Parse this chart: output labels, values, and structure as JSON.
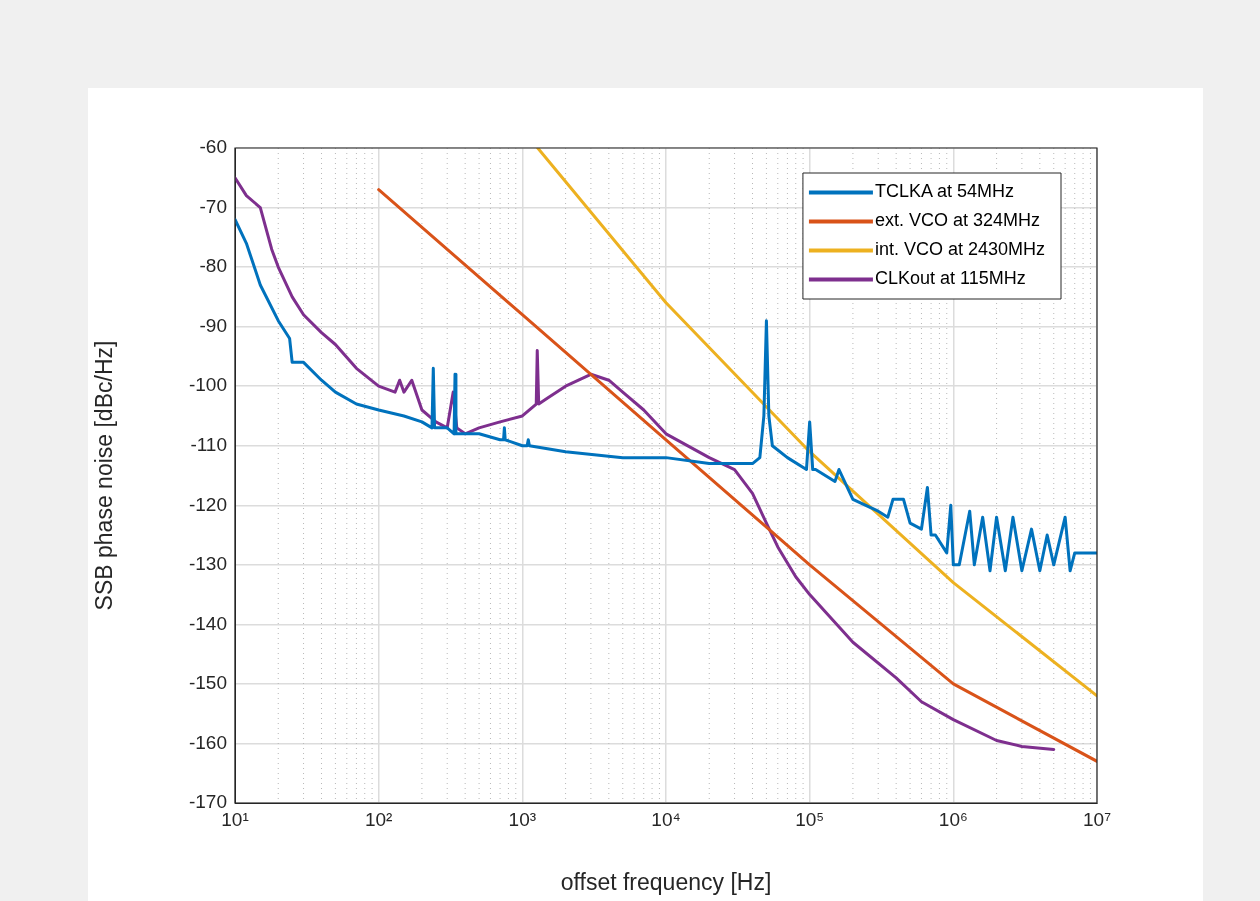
{
  "chart_data": {
    "type": "line",
    "xlabel": "offset frequency [Hz]",
    "ylabel": "SSB phase noise [dBc/Hz]",
    "log": "x",
    "xlim": [
      10,
      10000000
    ],
    "ylim": [
      -170,
      -60
    ],
    "xticks": [
      {
        "value": 10,
        "label": "10¹"
      },
      {
        "value": 100,
        "label": "10²"
      },
      {
        "value": 1000,
        "label": "10³"
      },
      {
        "value": 10000,
        "label": "10⁴"
      },
      {
        "value": 100000,
        "label": "10⁵"
      },
      {
        "value": 1000000,
        "label": "10⁶"
      },
      {
        "value": 10000000,
        "label": "10⁷"
      }
    ],
    "yticks": [
      -170,
      -160,
      -150,
      -140,
      -130,
      -120,
      -110,
      -100,
      -90,
      -80,
      -70,
      -60
    ],
    "grid": true,
    "legend": "top right",
    "marker": "none",
    "line_style": "solid",
    "series": [
      {
        "name": "TCLKA at 54MHz",
        "color": "#0072bd",
        "x": [
          10,
          12,
          15,
          20,
          24,
          25,
          30,
          40,
          50,
          70,
          100,
          150,
          200,
          235,
          240,
          245,
          300,
          335,
          340,
          345,
          500,
          700,
          740,
          750,
          760,
          1000,
          1080,
          1100,
          1120,
          2000,
          5000,
          10000,
          20000,
          40000,
          45000,
          48000,
          50000,
          52000,
          55000,
          70000,
          95000,
          100000,
          105000,
          110000,
          150000,
          160000,
          200000,
          300000,
          350000,
          380000,
          450000,
          500000,
          600000,
          660000,
          700000,
          750000,
          900000,
          960000,
          1000000,
          1100000,
          1300000,
          1400000,
          1600000,
          1800000,
          2000000,
          2300000,
          2600000,
          3000000,
          3500000,
          4000000,
          4500000,
          5000000,
          6000000,
          6500000,
          7000000,
          8000000,
          10000000
        ],
        "values": [
          -72,
          -76,
          -83,
          -89,
          -92,
          -96,
          -96,
          -99,
          -101,
          -103,
          -104,
          -105,
          -106,
          -107,
          -97,
          -107,
          -107,
          -108,
          -98,
          -108,
          -108,
          -109,
          -109,
          -107,
          -109,
          -110,
          -110,
          -109,
          -110,
          -111,
          -112,
          -112,
          -113,
          -113,
          -112,
          -105,
          -89,
          -105,
          -110,
          -112,
          -114,
          -106,
          -114,
          -114,
          -116,
          -114,
          -119,
          -121,
          -122,
          -119,
          -119,
          -123,
          -124,
          -117,
          -125,
          -125,
          -128,
          -120,
          -130,
          -130,
          -121,
          -130,
          -122,
          -131,
          -122,
          -131,
          -122,
          -131,
          -124,
          -131,
          -125,
          -130,
          -122,
          -131,
          -128,
          -128,
          -128
        ]
      },
      {
        "name": "ext. VCO at 324MHz",
        "color": "#d95319",
        "x": [
          100,
          1000,
          10000,
          100000,
          1000000,
          10000000
        ],
        "values": [
          -67,
          -88,
          -109,
          -130,
          -150,
          -163
        ]
      },
      {
        "name": "int. VCO at 2430MHz",
        "color": "#edb120",
        "x": [
          1280,
          10000,
          100000,
          1000000,
          10000000
        ],
        "values": [
          -60,
          -86,
          -111,
          -133,
          -152
        ]
      },
      {
        "name": "CLKout at 115MHz",
        "color": "#7e2f8e",
        "x": [
          10,
          12,
          15,
          18,
          20,
          25,
          30,
          40,
          50,
          70,
          100,
          130,
          140,
          150,
          170,
          200,
          250,
          300,
          330,
          350,
          400,
          500,
          700,
          1000,
          1250,
          1270,
          1300,
          1500,
          2000,
          3000,
          4000,
          5000,
          7000,
          10000,
          20000,
          30000,
          40000,
          50000,
          60000,
          80000,
          100000,
          200000,
          400000,
          600000,
          1000000,
          2000000,
          3000000,
          5000000
        ],
        "values": [
          -65,
          -68,
          -70,
          -77,
          -80,
          -85,
          -88,
          -91,
          -93,
          -97,
          -100,
          -101,
          -99,
          -101,
          -99,
          -104,
          -106,
          -107,
          -101,
          -107,
          -108,
          -107,
          -106,
          -105,
          -103,
          -94,
          -103,
          -102,
          -100,
          -98,
          -99,
          -101,
          -104,
          -108,
          -112,
          -114,
          -118,
          -123,
          -127,
          -132,
          -135,
          -143,
          -149,
          -153,
          -156,
          -159.5,
          -160.5,
          -161
        ]
      }
    ]
  }
}
